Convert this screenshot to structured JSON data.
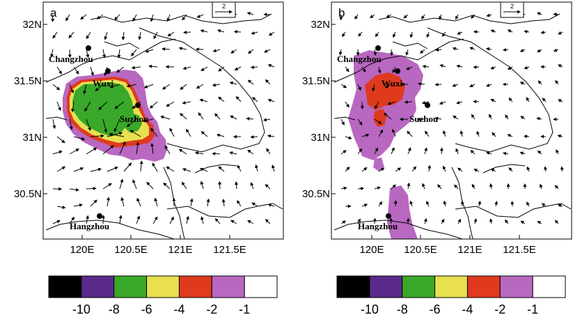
{
  "panels": [
    {
      "letter": "a",
      "lat_ticks": [
        "32N",
        "31.5N",
        "31N",
        "30.5N"
      ],
      "lon_ticks": [
        "120E",
        "120.5E",
        "121E",
        "121.5E"
      ],
      "reference_vector": "2",
      "cities": [
        "Changzhou",
        "Wuxi",
        "Suzhou",
        "Hangzhou"
      ]
    },
    {
      "letter": "b",
      "lat_ticks": [
        "32N",
        "31.5N",
        "31N",
        "30.5N"
      ],
      "lon_ticks": [
        "120E",
        "120.5E",
        "121E",
        "121.5E"
      ],
      "reference_vector": "2",
      "cities": [
        "Changzhou",
        "Wuxi",
        "Suzhou",
        "Hangzhou"
      ]
    }
  ],
  "colorbar": {
    "colors": [
      "#000000",
      "#5a2a8a",
      "#3aa82a",
      "#e8e050",
      "#e03a1e",
      "#b868c0",
      "#ffffff"
    ],
    "labels": [
      "-10",
      "-8",
      "-6",
      "-4",
      "-2",
      "-1"
    ]
  }
}
